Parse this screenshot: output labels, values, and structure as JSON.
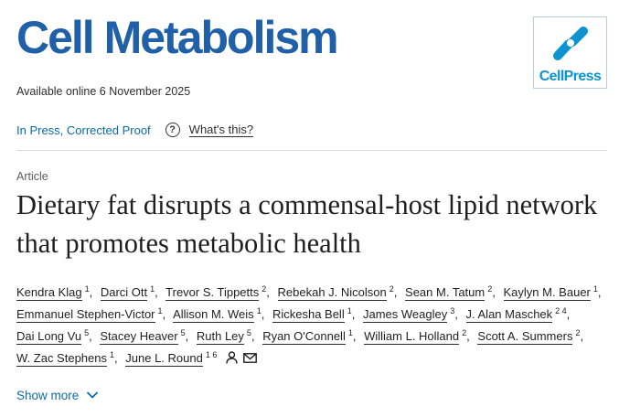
{
  "journal": {
    "title": "Cell Metabolism",
    "publisher_logo_text": "CellPress"
  },
  "availability": "Available online 6 November 2025",
  "status": {
    "link": "In Press, Corrected Proof",
    "help_icon": "question-circle-icon",
    "help_text": "What's this?"
  },
  "article": {
    "type": "Article",
    "title": "Dietary fat disrupts a commensal-host lipid network that promotes metabolic health"
  },
  "authors": [
    {
      "name": "Kendra Klag",
      "aff": "1"
    },
    {
      "name": "Darci Ott",
      "aff": "1"
    },
    {
      "name": "Trevor S. Tippetts",
      "aff": "2"
    },
    {
      "name": "Rebekah J. Nicolson",
      "aff": "2"
    },
    {
      "name": "Sean M. Tatum",
      "aff": "2"
    },
    {
      "name": "Kaylyn M. Bauer",
      "aff": "1"
    },
    {
      "name": "Emmanuel Stephen-Victor",
      "aff": "1"
    },
    {
      "name": "Allison M. Weis",
      "aff": "1"
    },
    {
      "name": "Rickesha Bell",
      "aff": "1"
    },
    {
      "name": "James Weagley",
      "aff": "3"
    },
    {
      "name": "J. Alan Maschek",
      "aff": "2 4"
    },
    {
      "name": "Dai Long Vu",
      "aff": "5"
    },
    {
      "name": "Stacey Heaver",
      "aff": "5"
    },
    {
      "name": "Ruth Ley",
      "aff": "5"
    },
    {
      "name": "Ryan O'Connell",
      "aff": "1"
    },
    {
      "name": "William L. Holland",
      "aff": "2"
    },
    {
      "name": "Scott A. Summers",
      "aff": "2"
    },
    {
      "name": "W. Zac Stephens",
      "aff": "1"
    },
    {
      "name": "June L. Round",
      "aff": "1 6"
    }
  ],
  "author_icons": [
    "person-icon",
    "envelope-icon"
  ],
  "show_more": "Show more",
  "colors": {
    "journal_blue": "#1f60a8",
    "link_blue": "#0c6ba8",
    "cellpress_blue": "#0d93d2"
  }
}
